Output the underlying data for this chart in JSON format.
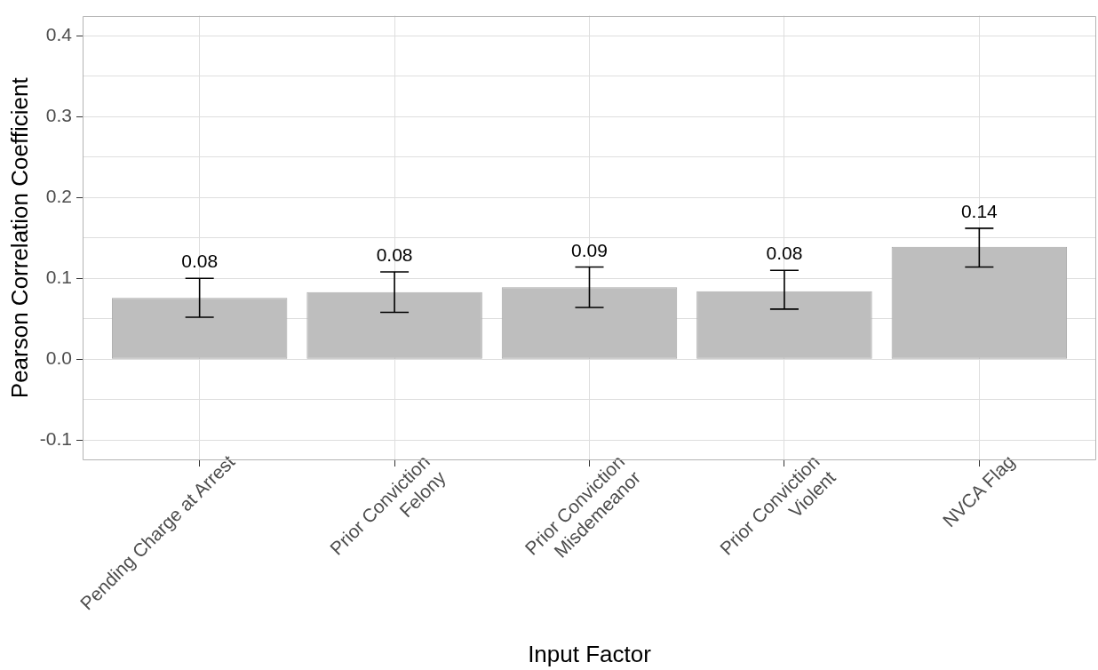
{
  "chart_data": {
    "type": "bar",
    "xlabel": "Input Factor",
    "ylabel": "Pearson Correlation Coefficient",
    "categories": [
      "Pending Charge at Arrest",
      "Prior Conviction\nFelony",
      "Prior Conviction\nMisdemeanor",
      "Prior Conviction\nViolent",
      "NVCA Flag"
    ],
    "values": [
      0.076,
      0.083,
      0.089,
      0.084,
      0.139
    ],
    "color": "#bebebe",
    "errors": [
      [
        0.052,
        0.1
      ],
      [
        0.058,
        0.108
      ],
      [
        0.064,
        0.114
      ],
      [
        0.062,
        0.11
      ],
      [
        0.114,
        0.162
      ]
    ],
    "value_labels": [
      "0.08",
      "0.08",
      "0.09",
      "0.08",
      "0.14"
    ],
    "ylim": [
      -0.125,
      0.425
    ],
    "yticks": [
      -0.1,
      {
        "value": -0.05,
        "label": null
      },
      {
        "value": 0,
        "label": "0.0"
      },
      {
        "value": 0.05,
        "label": null
      },
      0.1,
      {
        "value": 0.15,
        "label": null
      },
      0.2,
      {
        "value": 0.25,
        "label": null
      },
      0.3,
      {
        "value": 0.35,
        "label": null
      },
      0.4
    ],
    "grid": true
  }
}
